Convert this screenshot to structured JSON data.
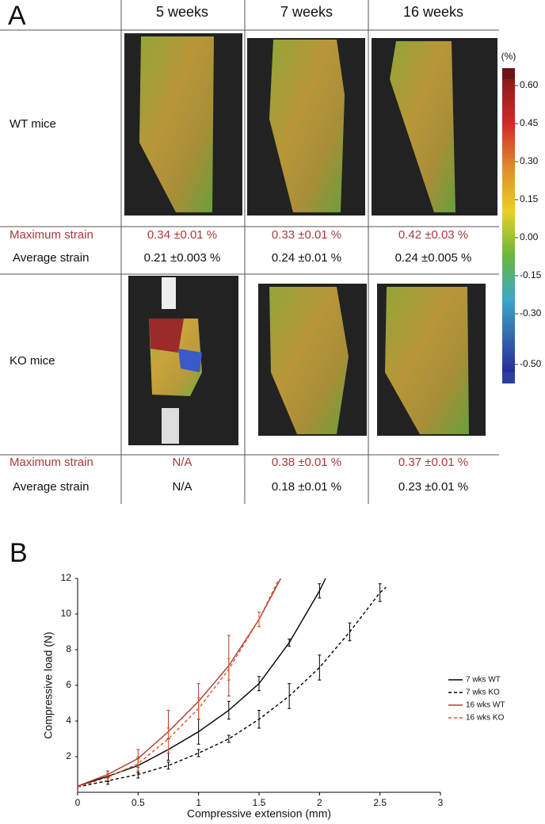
{
  "panel_a": {
    "label": "A",
    "columns": [
      "5 weeks",
      "7 weeks",
      "16 weeks"
    ],
    "groups": [
      {
        "label": "WT mice",
        "max_label": "Maximum strain",
        "max": [
          "0.34 ±0.01 %",
          "0.33 ±0.01 %",
          "0.42 ±0.03 %"
        ],
        "avg_label": "Average strain",
        "avg": [
          "0.21 ±0.003 %",
          "0.24 ±0.01 %",
          "0.24 ±0.005 %"
        ]
      },
      {
        "label": "KO mice",
        "max_label": "Maximum strain",
        "max": [
          "N/A",
          "0.38 ±0.01 %",
          "0.37 ±0.01 %"
        ],
        "avg_label": "Average strain",
        "avg": [
          "N/A",
          "0.18 ±0.01 %",
          "0.23 ±0.01 %"
        ]
      }
    ],
    "colorbar": {
      "unit": "(%)",
      "ticks": [
        {
          "value": 0.6,
          "label": "0.60"
        },
        {
          "value": 0.45,
          "label": "0.45"
        },
        {
          "value": 0.3,
          "label": "0.30"
        },
        {
          "value": 0.15,
          "label": "0.15"
        },
        {
          "value": 0,
          "label": "0.00"
        },
        {
          "value": -0.15,
          "label": "-0.15"
        },
        {
          "value": -0.3,
          "label": "-0.30"
        },
        {
          "value": -0.5,
          "label": "-0.50"
        }
      ]
    }
  },
  "chart_data": {
    "type": "line",
    "panel_label": "B",
    "x_label": "Compressive extension (mm)",
    "y_label": "Compressive load (N)",
    "xlim": [
      0,
      3
    ],
    "xticks": [
      0,
      0.5,
      1,
      1.5,
      2,
      2.5,
      3
    ],
    "ylim": [
      0,
      12
    ],
    "yticks": [
      2,
      4,
      6,
      8,
      10,
      12
    ],
    "grid": false,
    "legend": "right",
    "series": [
      {
        "name": "7 wks WT",
        "color": "#000000",
        "dash": false,
        "x": [
          0,
          0.25,
          0.5,
          0.75,
          1,
          1.25,
          1.5,
          1.75,
          2,
          2.05
        ],
        "values": [
          0.35,
          0.9,
          1.5,
          2.4,
          3.4,
          4.6,
          6.1,
          8.4,
          11.3,
          12
        ],
        "errors": [
          null,
          0.3,
          0.4,
          0.6,
          0.7,
          0.5,
          0.4,
          0.2,
          0.4,
          null
        ]
      },
      {
        "name": "7 wks KO",
        "color": "#000000",
        "dash": true,
        "x": [
          0,
          0.25,
          0.5,
          0.75,
          1,
          1.25,
          1.5,
          1.75,
          2,
          2.25,
          2.5,
          2.55
        ],
        "values": [
          0.3,
          0.65,
          1.0,
          1.5,
          2.2,
          3.0,
          4.1,
          5.4,
          7.0,
          9.0,
          11.2,
          11.5
        ],
        "errors": [
          null,
          0.2,
          0.2,
          0.2,
          0.2,
          0.2,
          0.5,
          0.7,
          0.7,
          0.5,
          0.5,
          null
        ]
      },
      {
        "name": "16 wks WT",
        "color": "#b03a2e",
        "dash": false,
        "x": [
          0,
          0.25,
          0.5,
          0.75,
          1,
          1.25,
          1.5,
          1.68
        ],
        "values": [
          0.35,
          1.0,
          1.9,
          3.4,
          5.1,
          7.1,
          9.7,
          12
        ],
        "errors": [
          null,
          0.2,
          0.5,
          1.2,
          1.0,
          1.7,
          0.4,
          null
        ]
      },
      {
        "name": "16 wks KO",
        "color": "#d9542a",
        "dash": true,
        "x": [
          0,
          0.25,
          0.5,
          0.75,
          1,
          1.25,
          1.5,
          1.66
        ],
        "values": [
          0.3,
          0.85,
          1.6,
          3.0,
          4.7,
          6.9,
          9.7,
          11.9
        ],
        "errors": [
          null,
          0.2,
          0.4,
          0.6,
          0.6,
          0.6,
          0.4,
          null
        ]
      }
    ]
  }
}
